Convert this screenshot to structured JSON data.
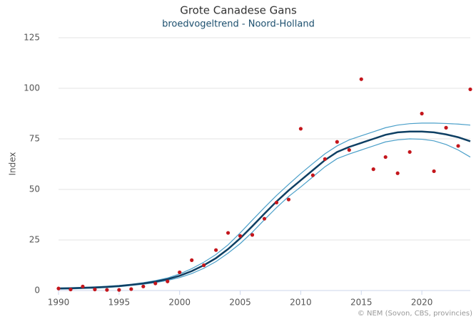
{
  "chart_data": {
    "type": "line",
    "title": "Grote Canadese Gans",
    "subtitle": "broedvogeltrend - Noord-Holland",
    "y_label": "Index",
    "credit": "© NEM (Sovon, CBS, provincies)",
    "x": [
      1990,
      1991,
      1992,
      1993,
      1994,
      1995,
      1996,
      1997,
      1998,
      1999,
      2000,
      2001,
      2002,
      2003,
      2004,
      2005,
      2006,
      2007,
      2008,
      2009,
      2010,
      2011,
      2012,
      2013,
      2014,
      2015,
      2016,
      2017,
      2018,
      2019,
      2020,
      2021,
      2022,
      2023,
      2024
    ],
    "series": [
      {
        "color": "#4a9fc9",
        "width": 1.2,
        "values": [
          1.3,
          1.4,
          1.6,
          1.8,
          2.1,
          2.5,
          3.1,
          3.9,
          4.9,
          6.2,
          8.2,
          10.8,
          14,
          17.8,
          22.6,
          28.5,
          34.8,
          41,
          47,
          52.5,
          57.8,
          62.8,
          67.6,
          71.5,
          74.5,
          76.5,
          78.5,
          80.5,
          81.8,
          82.5,
          82.8,
          82.8,
          82.6,
          82.3,
          81.8
        ]
      },
      {
        "color": "#4a9fc9",
        "width": 1.2,
        "values": [
          0.7,
          0.8,
          1,
          1.2,
          1.5,
          1.9,
          2.5,
          3.1,
          3.9,
          5,
          6.4,
          8.4,
          11,
          14.3,
          18.5,
          23.2,
          28.8,
          35,
          41,
          46.5,
          51.2,
          56.2,
          61.2,
          65.2,
          67.5,
          69.5,
          71.5,
          73.5,
          74.5,
          75,
          74.8,
          74,
          72.2,
          69.5,
          66
        ]
      },
      {
        "color": "#0e3f63",
        "width": 2.5,
        "values": [
          1,
          1.1,
          1.3,
          1.5,
          1.8,
          2.2,
          2.8,
          3.5,
          4.4,
          5.6,
          7.3,
          9.6,
          12.5,
          16,
          20.5,
          25.8,
          31.8,
          38,
          44,
          49.5,
          54.5,
          59.5,
          64.5,
          68.5,
          71,
          73,
          75,
          77,
          78.2,
          78.6,
          78.6,
          78.2,
          77.2,
          75.8,
          73.8
        ]
      }
    ],
    "points": {
      "color": "#c4161c",
      "values": [
        1,
        0.5,
        2,
        0.5,
        0.3,
        0.3,
        0.7,
        2,
        3.5,
        4.5,
        9,
        15,
        12.5,
        20,
        28.5,
        27,
        27.5,
        35.5,
        43.5,
        45,
        80,
        57,
        65,
        73.5,
        69.5,
        104.5,
        60,
        66,
        58,
        68.5,
        87.5,
        59,
        80.5,
        71.5,
        99.5
      ]
    },
    "xlim": [
      1990,
      2024
    ],
    "ylim": [
      0,
      125
    ],
    "xticks": [
      1990,
      1995,
      2000,
      2005,
      2010,
      2015,
      2020
    ],
    "yticks": [
      0,
      25,
      50,
      75,
      100,
      125
    ],
    "grid": true
  }
}
